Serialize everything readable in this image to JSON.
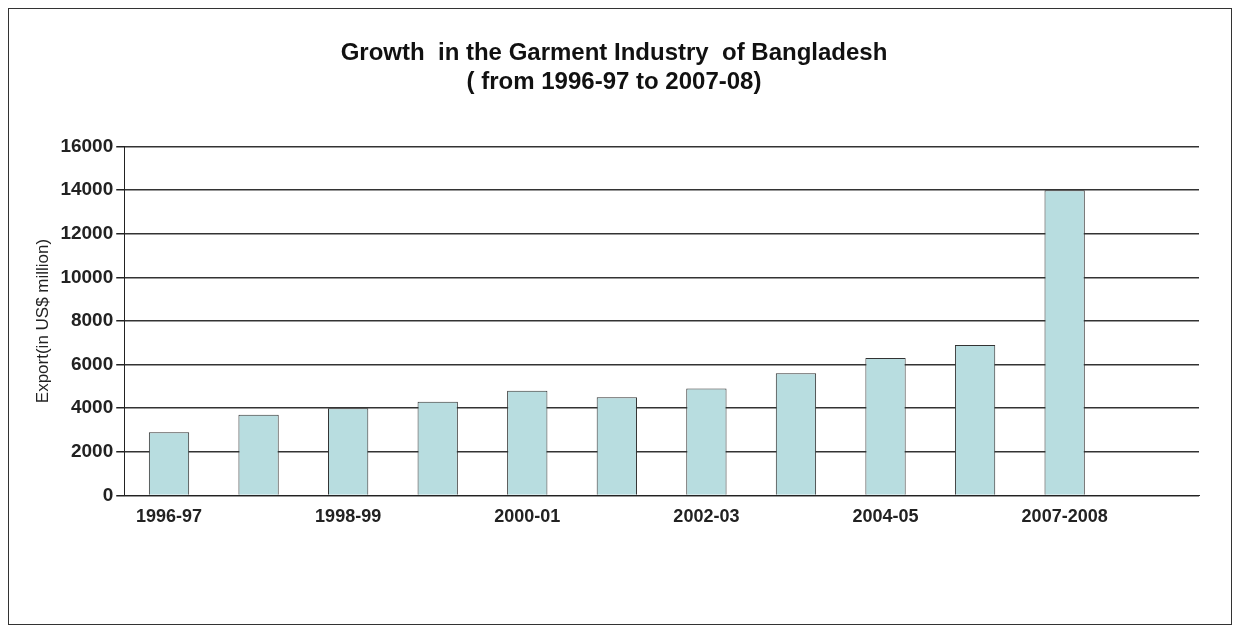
{
  "chart_data": {
    "type": "bar",
    "title": [
      "Growth  in the Garment Industry  of Bangladesh",
      "( from 1996-97 to 2007-08)"
    ],
    "ylabel": "Export(in US$ million)",
    "categories": [
      "1996-97",
      null,
      "1998-99",
      null,
      "2000-01",
      null,
      "2002-03",
      null,
      "2004-05",
      null,
      "2007-2008",
      null
    ],
    "values": [
      2900,
      3700,
      4000,
      4300,
      4800,
      4500,
      4900,
      5600,
      6300,
      6900,
      14000,
      null
    ],
    "color": "#b8dde0",
    "ylim": [
      0,
      16000
    ],
    "yticks": [
      0,
      2000,
      4000,
      6000,
      8000,
      10000,
      12000,
      14000,
      16000
    ],
    "grid": "y",
    "legend": false
  }
}
